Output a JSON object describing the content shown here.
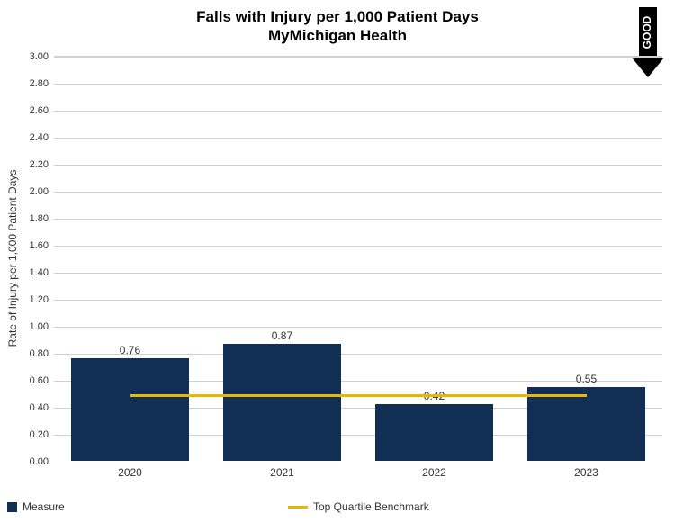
{
  "chart": {
    "type": "bar",
    "title_line1": "Falls with Injury per 1,000 Patient Days",
    "title_line2": "MyMichigan Health",
    "title_fontsize": 17,
    "good_indicator": {
      "text": "GOOD",
      "direction": "down",
      "color": "#000000"
    },
    "yaxis": {
      "label": "Rate of Injury per 1,000 Patient Days",
      "label_fontsize": 12,
      "ylim": [
        0.0,
        3.0
      ],
      "tick_step": 0.2,
      "ticks": [
        "0.00",
        "0.20",
        "0.40",
        "0.60",
        "0.80",
        "1.00",
        "1.20",
        "1.40",
        "1.60",
        "1.80",
        "2.00",
        "2.20",
        "2.40",
        "2.60",
        "2.80",
        "3.00"
      ],
      "tick_fontsize": 11,
      "grid_color": "#d0d0d0"
    },
    "xaxis": {
      "categories": [
        "2020",
        "2021",
        "2022",
        "2023"
      ],
      "tick_fontsize": 12
    },
    "bars": {
      "values": [
        0.76,
        0.87,
        0.42,
        0.55
      ],
      "value_labels": [
        "0.76",
        "0.87",
        "0.42",
        "0.55"
      ],
      "color": "#112f54",
      "bar_width_ratio": 0.78
    },
    "benchmark": {
      "label": "Top Quartile Benchmark",
      "value": 0.49,
      "color": "#e6b800",
      "line_width": 3
    },
    "legend": {
      "items": [
        {
          "text": "Measure",
          "swatch": "square",
          "color": "#112f54"
        },
        {
          "text": "Top Quartile Benchmark",
          "swatch": "line",
          "color": "#e6b800"
        }
      ]
    },
    "background_color": "#ffffff"
  }
}
